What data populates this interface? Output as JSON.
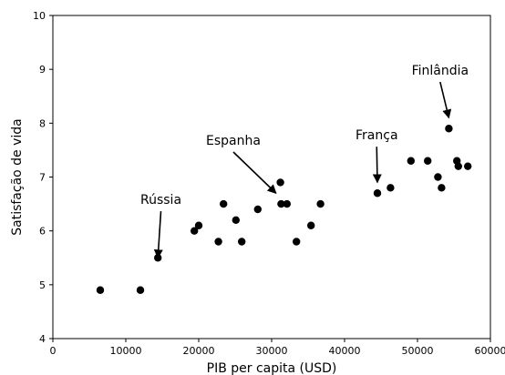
{
  "chart_data": {
    "type": "scatter",
    "xlabel": "PIB per capita (USD)",
    "ylabel": "Satisfação de vida",
    "xlim": [
      0,
      60000
    ],
    "ylim": [
      4,
      10
    ],
    "xticks": [
      0,
      10000,
      20000,
      30000,
      40000,
      50000,
      60000
    ],
    "yticks": [
      4,
      5,
      6,
      7,
      8,
      9,
      10
    ],
    "grid": false,
    "colors": {
      "points": "#000000",
      "frame": "#000000",
      "background": "#ffffff"
    },
    "points": [
      {
        "x": 6500,
        "y": 4.9
      },
      {
        "x": 12000,
        "y": 4.9
      },
      {
        "x": 14400,
        "y": 5.5
      },
      {
        "x": 19400,
        "y": 6.0
      },
      {
        "x": 20000,
        "y": 6.1
      },
      {
        "x": 22700,
        "y": 5.8
      },
      {
        "x": 23400,
        "y": 6.5
      },
      {
        "x": 25100,
        "y": 6.2
      },
      {
        "x": 25900,
        "y": 5.8
      },
      {
        "x": 28100,
        "y": 6.4
      },
      {
        "x": 31200,
        "y": 6.9
      },
      {
        "x": 31300,
        "y": 6.5
      },
      {
        "x": 32100,
        "y": 6.5
      },
      {
        "x": 33400,
        "y": 5.8
      },
      {
        "x": 35400,
        "y": 6.1
      },
      {
        "x": 36700,
        "y": 6.5
      },
      {
        "x": 44500,
        "y": 6.7
      },
      {
        "x": 46300,
        "y": 6.8
      },
      {
        "x": 49100,
        "y": 7.3
      },
      {
        "x": 51400,
        "y": 7.3
      },
      {
        "x": 52800,
        "y": 7.0
      },
      {
        "x": 53300,
        "y": 6.8
      },
      {
        "x": 54300,
        "y": 7.9
      },
      {
        "x": 55400,
        "y": 7.3
      },
      {
        "x": 55600,
        "y": 7.2
      },
      {
        "x": 56900,
        "y": 7.2
      }
    ],
    "annotations": [
      {
        "text": "Rússia",
        "x": 14400,
        "y": 5.5,
        "text_x": 12000,
        "text_y": 6.5
      },
      {
        "text": "Espanha",
        "x": 30600,
        "y": 6.7,
        "text_x": 21000,
        "text_y": 7.6
      },
      {
        "text": "França",
        "x": 44500,
        "y": 6.9,
        "text_x": 41500,
        "text_y": 7.7
      },
      {
        "text": "Finlândia",
        "x": 54300,
        "y": 8.1,
        "text_x": 49200,
        "text_y": 8.9
      }
    ]
  }
}
